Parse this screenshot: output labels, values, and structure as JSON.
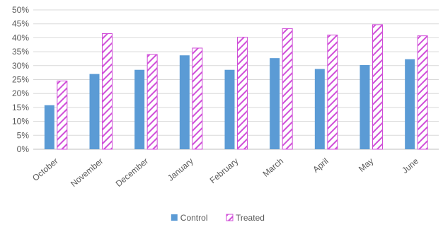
{
  "chart_data": {
    "type": "bar",
    "categories": [
      "October",
      "November",
      "December",
      "January",
      "February",
      "March",
      "April",
      "May",
      "June"
    ],
    "series": [
      {
        "name": "Control",
        "values": [
          15.8,
          27.0,
          28.5,
          33.7,
          28.5,
          32.7,
          28.8,
          30.2,
          32.3
        ],
        "color": "#5b9bd5",
        "pattern": "solid"
      },
      {
        "name": "Treated",
        "values": [
          24.5,
          41.5,
          34.0,
          36.3,
          40.2,
          43.3,
          41.0,
          44.7,
          40.7
        ],
        "color": "#d04ed8",
        "pattern": "diagonal-hatch"
      }
    ],
    "yticks": [
      "0%",
      "5%",
      "10%",
      "15%",
      "20%",
      "25%",
      "30%",
      "35%",
      "40%",
      "45%",
      "50%"
    ],
    "ylim": [
      0,
      50
    ],
    "yunit": "%",
    "grid": true,
    "legend_position": "bottom-center",
    "title": "",
    "xlabel": "",
    "ylabel": ""
  }
}
